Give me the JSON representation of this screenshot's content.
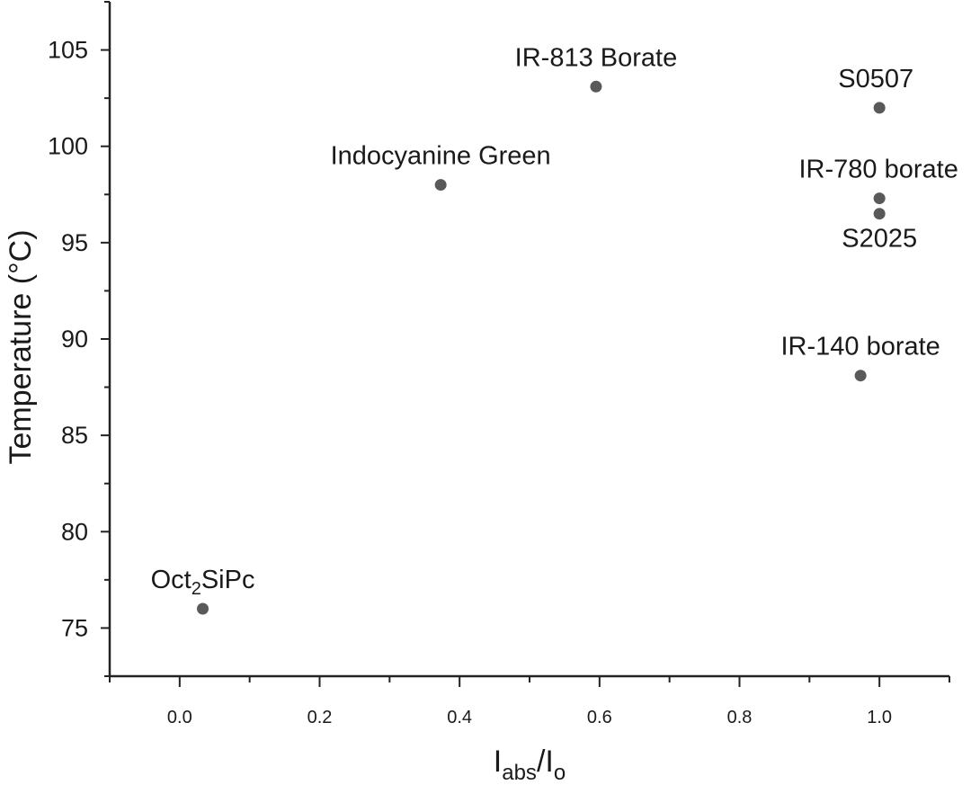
{
  "chart_data": {
    "type": "scatter",
    "title": "",
    "xlabel": {
      "main": "I",
      "sub1": "abs",
      "sep": "/I",
      "sub2": "o"
    },
    "ylabel": "Temperature (°C)",
    "xlim": [
      -0.1,
      1.1
    ],
    "ylim": [
      72.5,
      107.5
    ],
    "x_ticks": [
      "0.0",
      "0.2",
      "0.4",
      "0.6",
      "0.8",
      "1.0"
    ],
    "x_tick_values": [
      0.0,
      0.2,
      0.4,
      0.6,
      0.8,
      1.0
    ],
    "y_ticks": [
      "75",
      "80",
      "85",
      "90",
      "95",
      "100",
      "105"
    ],
    "y_tick_values": [
      75,
      80,
      85,
      90,
      95,
      100,
      105
    ],
    "grid": false,
    "marker_color": "#595959",
    "points": [
      {
        "label": "Oct",
        "label_sub": "2",
        "label_rest": "SiPc",
        "x": 0.033,
        "y": 76.0,
        "label_pos": "above"
      },
      {
        "label": "Indocyanine Green",
        "x": 0.373,
        "y": 98.0,
        "label_pos": "above"
      },
      {
        "label": "IR-813 Borate",
        "x": 0.595,
        "y": 103.1,
        "label_pos": "above"
      },
      {
        "label": "S0507",
        "x": 1.0,
        "y": 102.0,
        "label_pos": "above"
      },
      {
        "label": "IR-780 borate",
        "x": 1.0,
        "y": 97.3,
        "label_pos": "above"
      },
      {
        "label": "S2025",
        "x": 1.0,
        "y": 96.5,
        "label_pos": "below"
      },
      {
        "label": "IR-140 borate",
        "x": 0.973,
        "y": 88.1,
        "label_pos": "above"
      }
    ]
  }
}
